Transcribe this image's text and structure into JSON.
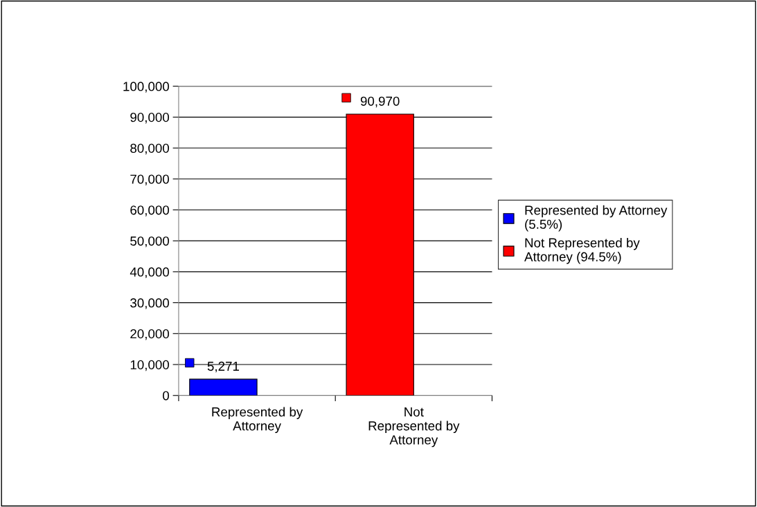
{
  "chart_data": {
    "type": "bar",
    "categories": [
      "Represented by\nAttorney",
      "Not\nRepresented by\nAttorney"
    ],
    "series": [
      {
        "name": "Represented by Attorney\n(5.5%)",
        "color": "#0000ff",
        "values": [
          5271,
          null
        ],
        "value_labels": [
          "5,271",
          null
        ]
      },
      {
        "name": "Not Represented by\nAttorney (94.5%)",
        "color": "#ff0000",
        "values": [
          null,
          90970
        ],
        "value_labels": [
          null,
          "90,970"
        ]
      }
    ],
    "ylim": [
      0,
      100000
    ],
    "yticks": [
      {
        "value": 0,
        "label": "0"
      },
      {
        "value": 10000,
        "label": "10,000"
      },
      {
        "value": 20000,
        "label": "20,000"
      },
      {
        "value": 30000,
        "label": "30,000"
      },
      {
        "value": 40000,
        "label": "40,000"
      },
      {
        "value": 50000,
        "label": "50,000"
      },
      {
        "value": 60000,
        "label": "60,000"
      },
      {
        "value": 70000,
        "label": "70,000"
      },
      {
        "value": 80000,
        "label": "80,000"
      },
      {
        "value": 90000,
        "label": "90,000"
      },
      {
        "value": 100000,
        "label": "100,000"
      }
    ],
    "grid": "y",
    "legend": "right"
  }
}
